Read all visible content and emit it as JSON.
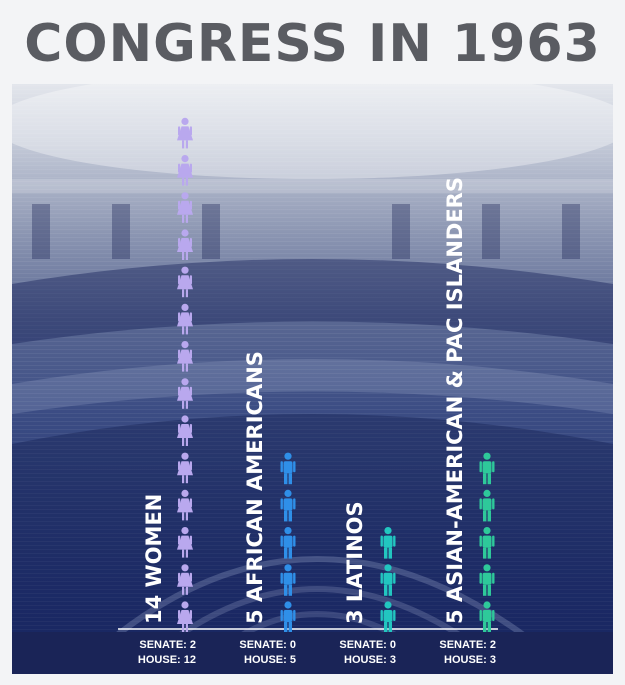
{
  "title": "CONGRESS IN 1963",
  "chart_data": {
    "type": "bar",
    "categories": [
      "14 WOMEN",
      "5 AFRICAN AMERICANS",
      "3 LATINOS",
      "5 ASIAN-AMERICAN & PAC ISLANDERS"
    ],
    "values": [
      14,
      5,
      3,
      5
    ],
    "series": [
      {
        "name": "SENATE",
        "values": [
          2,
          0,
          0,
          2
        ]
      },
      {
        "name": "HOUSE",
        "values": [
          12,
          5,
          3,
          3
        ]
      }
    ],
    "colors": [
      "#b9a8ee",
      "#2f8fe8",
      "#22c6c0",
      "#2ec99a"
    ],
    "icons": [
      "woman-icon",
      "man-icon",
      "man-icon",
      "man-icon"
    ],
    "breakdown": [
      {
        "senate": "SENATE: 2",
        "house": "HOUSE: 12"
      },
      {
        "senate": "SENATE: 0",
        "house": "HOUSE: 5"
      },
      {
        "senate": "SENATE: 0",
        "house": "HOUSE: 3"
      },
      {
        "senate": "SENATE: 2",
        "house": "HOUSE: 3"
      }
    ],
    "xlabel": "",
    "ylabel": ""
  }
}
